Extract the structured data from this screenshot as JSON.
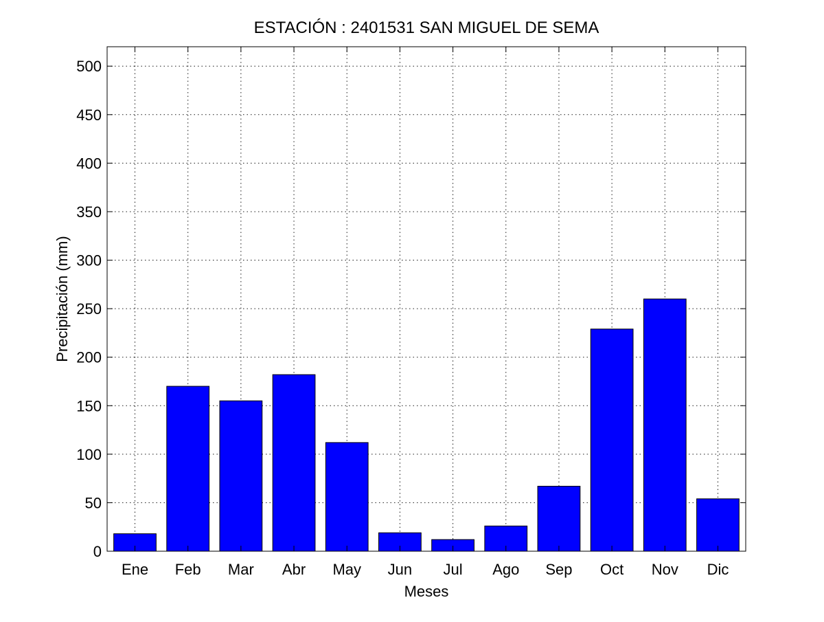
{
  "chart_data": {
    "type": "bar",
    "title": "ESTACIÓN :  2401531  SAN MIGUEL DE SEMA",
    "xlabel": "Meses",
    "ylabel": "Precipitación (mm)",
    "categories": [
      "Ene",
      "Feb",
      "Mar",
      "Abr",
      "May",
      "Jun",
      "Jul",
      "Ago",
      "Sep",
      "Oct",
      "Nov",
      "Dic"
    ],
    "values": [
      18,
      170,
      155,
      182,
      112,
      19,
      12,
      26,
      67,
      229,
      260,
      54
    ],
    "ylim": [
      0,
      520
    ],
    "yticks": [
      0,
      50,
      100,
      150,
      200,
      250,
      300,
      350,
      400,
      450,
      500
    ],
    "grid": true,
    "bar_color": "#0000ff",
    "edge_color": "#000000"
  }
}
